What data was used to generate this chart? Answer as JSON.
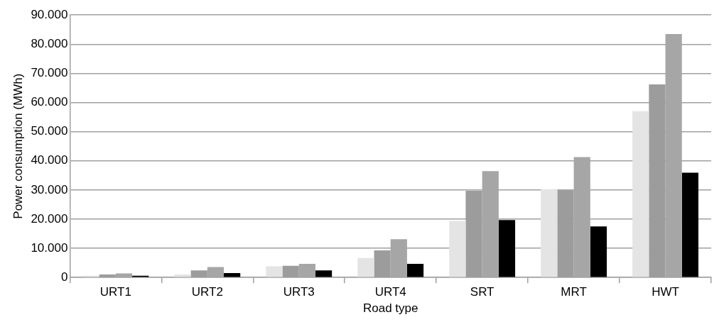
{
  "chart_data": {
    "type": "bar",
    "xlabel": "Road type",
    "ylabel": "Power consumption (MWh)",
    "categories": [
      "URT1",
      "URT2",
      "URT3",
      "URT4",
      "SRT",
      "MRT",
      "HWT"
    ],
    "series": [
      {
        "color": "#e4e4e4",
        "values": [
          600,
          1000,
          3800,
          6700,
          19400,
          30300,
          57000
        ]
      },
      {
        "color": "#9c9c9c",
        "values": [
          1000,
          2400,
          4000,
          9300,
          29700,
          29900,
          66200
        ]
      },
      {
        "color": "#a6a6a6",
        "values": [
          1400,
          3600,
          4700,
          13100,
          36500,
          41300,
          83500
        ]
      },
      {
        "color": "#000000",
        "values": [
          600,
          1500,
          2400,
          4700,
          19700,
          17500,
          35900
        ]
      }
    ],
    "ylim": [
      0,
      90000
    ],
    "yticks": [
      {
        "value": 0,
        "label": "0"
      },
      {
        "value": 10000,
        "label": "10.000"
      },
      {
        "value": 20000,
        "label": "20.000"
      },
      {
        "value": 30000,
        "label": "30.000"
      },
      {
        "value": 40000,
        "label": "40.000"
      },
      {
        "value": 50000,
        "label": "50.000"
      },
      {
        "value": 60000,
        "label": "60.000"
      },
      {
        "value": 70000,
        "label": "70.000"
      },
      {
        "value": 80000,
        "label": "80.000"
      },
      {
        "value": 90000,
        "label": "90.000"
      }
    ],
    "grid": "y",
    "legend": false
  }
}
